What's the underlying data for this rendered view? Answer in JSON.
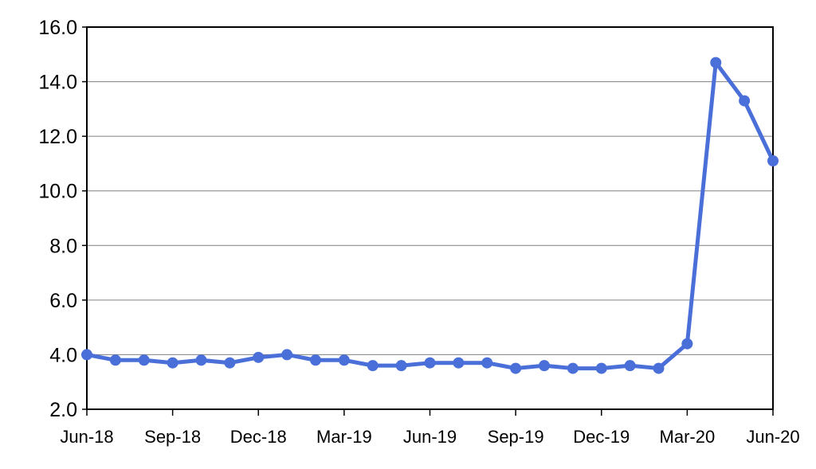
{
  "chart_data": {
    "type": "line",
    "title": "",
    "xlabel": "",
    "ylabel": "",
    "ylim": [
      2.0,
      16.0
    ],
    "yticks": [
      "2.0",
      "4.0",
      "6.0",
      "8.0",
      "10.0",
      "12.0",
      "14.0",
      "16.0"
    ],
    "x": [
      "Jun-18",
      "Jul-18",
      "Aug-18",
      "Sep-18",
      "Oct-18",
      "Nov-18",
      "Dec-18",
      "Jan-19",
      "Feb-19",
      "Mar-19",
      "Apr-19",
      "May-19",
      "Jun-19",
      "Jul-19",
      "Aug-19",
      "Sep-19",
      "Oct-19",
      "Nov-19",
      "Dec-19",
      "Jan-20",
      "Feb-20",
      "Mar-20",
      "Apr-20",
      "May-20",
      "Jun-20"
    ],
    "xtick_labels": [
      "Jun-18",
      "Sep-18",
      "Dec-18",
      "Mar-19",
      "Jun-19",
      "Sep-19",
      "Dec-19",
      "Mar-20",
      "Jun-20"
    ],
    "series": [
      {
        "values": [
          4.0,
          3.8,
          3.8,
          3.7,
          3.8,
          3.7,
          3.9,
          4.0,
          3.8,
          3.8,
          3.6,
          3.6,
          3.7,
          3.7,
          3.7,
          3.5,
          3.6,
          3.5,
          3.5,
          3.6,
          3.5,
          4.4,
          14.7,
          13.3,
          11.1
        ]
      }
    ],
    "grid": true,
    "legend": "none",
    "colors": {
      "line": "#4a6fd8",
      "grid": "#808080",
      "axis": "#000000"
    }
  }
}
